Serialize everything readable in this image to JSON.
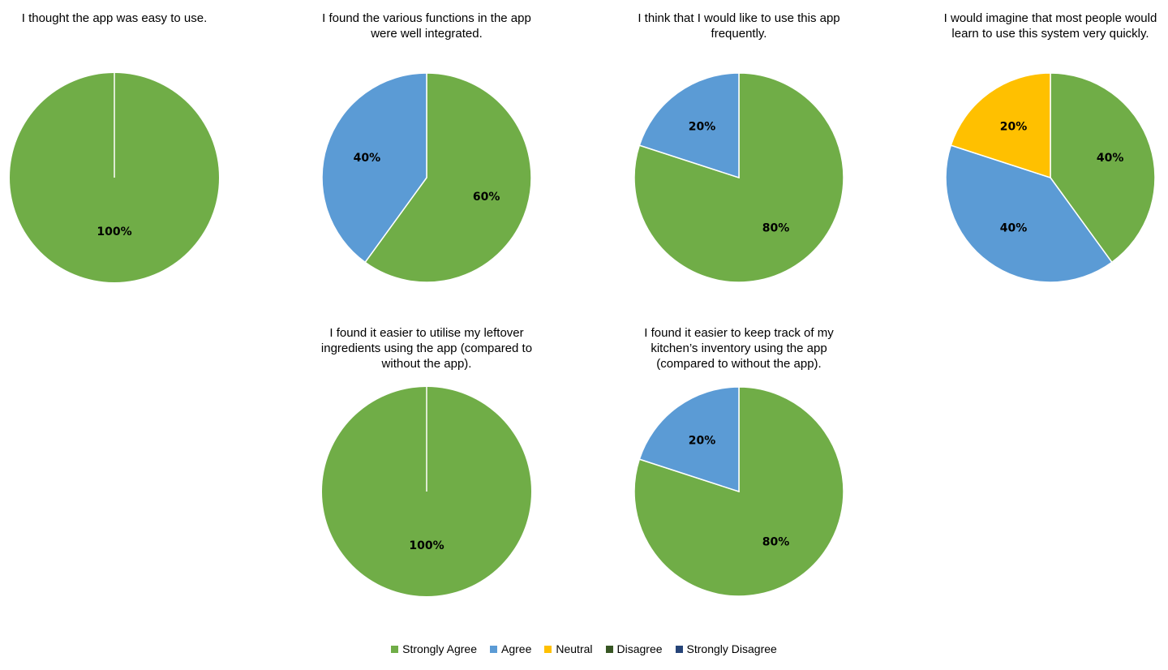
{
  "colors": {
    "Strongly Agree": "#70ad47",
    "Agree": "#5b9bd5",
    "Neutral": "#ffc000",
    "Disagree": "#375623",
    "Strongly Disagree": "#264478"
  },
  "legend": [
    {
      "label": "Strongly Agree",
      "color": "#70ad47"
    },
    {
      "label": "Agree",
      "color": "#5b9bd5"
    },
    {
      "label": "Neutral",
      "color": "#ffc000"
    },
    {
      "label": "Disagree",
      "color": "#375623"
    },
    {
      "label": "Strongly Disagree",
      "color": "#264478"
    }
  ],
  "chart_data": [
    {
      "type": "pie",
      "title": "I thought the app was easy to use.",
      "categories": [
        "Strongly Agree"
      ],
      "values": [
        100
      ],
      "labels": [
        "100%"
      ]
    },
    {
      "type": "pie",
      "title": "I found the various functions in the app\nwere well integrated.",
      "categories": [
        "Strongly Agree",
        "Agree"
      ],
      "values": [
        60,
        40
      ],
      "labels": [
        "60%",
        "40%"
      ]
    },
    {
      "type": "pie",
      "title": "I think that I would like to use this app\nfrequently.",
      "categories": [
        "Strongly Agree",
        "Agree"
      ],
      "values": [
        80,
        20
      ],
      "labels": [
        "80%",
        "20%"
      ]
    },
    {
      "type": "pie",
      "title": "I would imagine that most people would\nlearn to use this system very quickly.",
      "categories": [
        "Strongly Agree",
        "Agree",
        "Neutral"
      ],
      "values": [
        40,
        40,
        20
      ],
      "labels": [
        "40%",
        "40%",
        "20%"
      ]
    },
    {
      "type": "pie",
      "title": "I found it easier to utilise my leftover\ningredients using the app (compared to\nwithout the app).",
      "categories": [
        "Strongly Agree"
      ],
      "values": [
        100
      ],
      "labels": [
        "100%"
      ]
    },
    {
      "type": "pie",
      "title": "I found it easier to keep track of my\nkitchen’s inventory using the app\n(compared to without the app).",
      "categories": [
        "Strongly Agree",
        "Agree"
      ],
      "values": [
        80,
        20
      ],
      "labels": [
        "80%",
        "20%"
      ]
    }
  ]
}
